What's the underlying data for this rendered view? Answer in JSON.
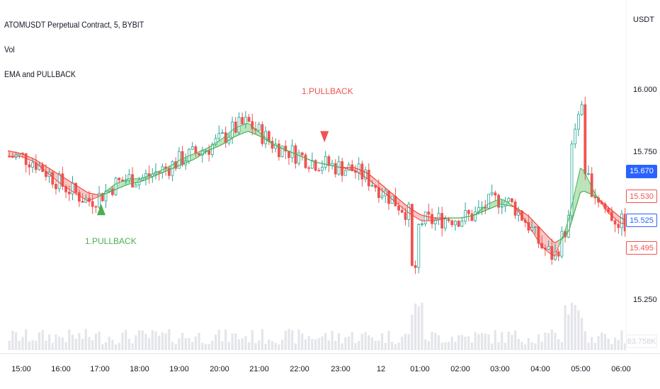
{
  "header": {
    "symbol_title": "ATOMUSDT Perpetual Contract, 5, BYBIT",
    "indicator_vol": "Vol",
    "indicator_ema": "EMA and PULLBACK"
  },
  "price_axis": {
    "unit": "USDT",
    "ticks": [
      "16.000",
      "15.750",
      "15.250"
    ],
    "tags": {
      "last_price": "15.670",
      "ema_fast": "15.530",
      "ema_slow": "15.495",
      "current": "15.525",
      "volume_hidden": "83.758K"
    }
  },
  "colors": {
    "up": "#26a69a",
    "down": "#ef5350",
    "ema_bull": "#4caf50",
    "ema_bear": "#f44336",
    "fill_bull": "#b9e4bb",
    "fill_bear": "#f7c6c6",
    "volume": "#e3e5ea",
    "accent": "#2962ff"
  },
  "chart_data": {
    "type": "line",
    "title": "ATOMUSDT Perpetual Contract, 5, BYBIT",
    "xlabel": "",
    "ylabel": "",
    "ylim": [
      15.13,
      16.13
    ],
    "x": [
      "14:40",
      "15:00",
      "15:20",
      "15:40",
      "16:00",
      "16:20",
      "16:40",
      "17:00",
      "17:20",
      "17:40",
      "18:00",
      "18:20",
      "18:40",
      "19:00",
      "19:20",
      "19:40",
      "20:00",
      "20:20",
      "20:40",
      "21:00",
      "21:20",
      "21:40",
      "22:00",
      "22:20",
      "22:40",
      "23:00",
      "23:20",
      "23:40",
      "00:00",
      "00:20",
      "00:40",
      "01:00",
      "01:20",
      "01:40",
      "02:00",
      "02:20",
      "02:40",
      "03:00",
      "03:20",
      "03:40",
      "04:00",
      "04:20",
      "04:40",
      "05:00",
      "05:20",
      "05:40",
      "06:00",
      "06:10"
    ],
    "series": [
      {
        "values": [
          15.76,
          15.76,
          15.74,
          15.7,
          15.66,
          15.63,
          15.6,
          15.62,
          15.66,
          15.68,
          15.68,
          15.7,
          15.72,
          15.75,
          15.77,
          15.79,
          15.82,
          15.86,
          15.88,
          15.84,
          15.8,
          15.78,
          15.76,
          15.74,
          15.73,
          15.72,
          15.71,
          15.68,
          15.64,
          15.6,
          15.56,
          15.53,
          15.53,
          15.54,
          15.54,
          15.55,
          15.59,
          15.61,
          15.58,
          15.52,
          15.44,
          15.4,
          15.52,
          15.73,
          15.63,
          15.56,
          15.52,
          15.52
        ]
      },
      {
        "values": [
          15.78,
          15.77,
          15.75,
          15.72,
          15.69,
          15.66,
          15.63,
          15.62,
          15.64,
          15.66,
          15.67,
          15.69,
          15.71,
          15.73,
          15.75,
          15.78,
          15.8,
          15.83,
          15.85,
          15.83,
          15.8,
          15.78,
          15.76,
          15.74,
          15.73,
          15.72,
          15.72,
          15.7,
          15.66,
          15.62,
          15.58,
          15.55,
          15.54,
          15.54,
          15.54,
          15.55,
          15.57,
          15.59,
          15.58,
          15.55,
          15.5,
          15.45,
          15.48,
          15.64,
          15.62,
          15.58,
          15.54,
          15.53
        ]
      }
    ],
    "annotations": [
      {
        "label": "1.PULLBACK",
        "x": "17:00",
        "y": 15.57,
        "direction": "up"
      },
      {
        "label": "1.PULLBACK",
        "x": "22:35",
        "y": 15.83,
        "direction": "down"
      }
    ],
    "x_axis_labels": [
      "15:00",
      "16:00",
      "17:00",
      "18:00",
      "19:00",
      "20:00",
      "21:00",
      "22:00",
      "23:00",
      "12",
      "01:00",
      "02:00",
      "03:00",
      "04:00",
      "05:00",
      "06:00"
    ],
    "y_axis_labels": [
      "16.000",
      "15.750",
      "15.250"
    ],
    "grid": false,
    "legend_position": "top-left"
  }
}
